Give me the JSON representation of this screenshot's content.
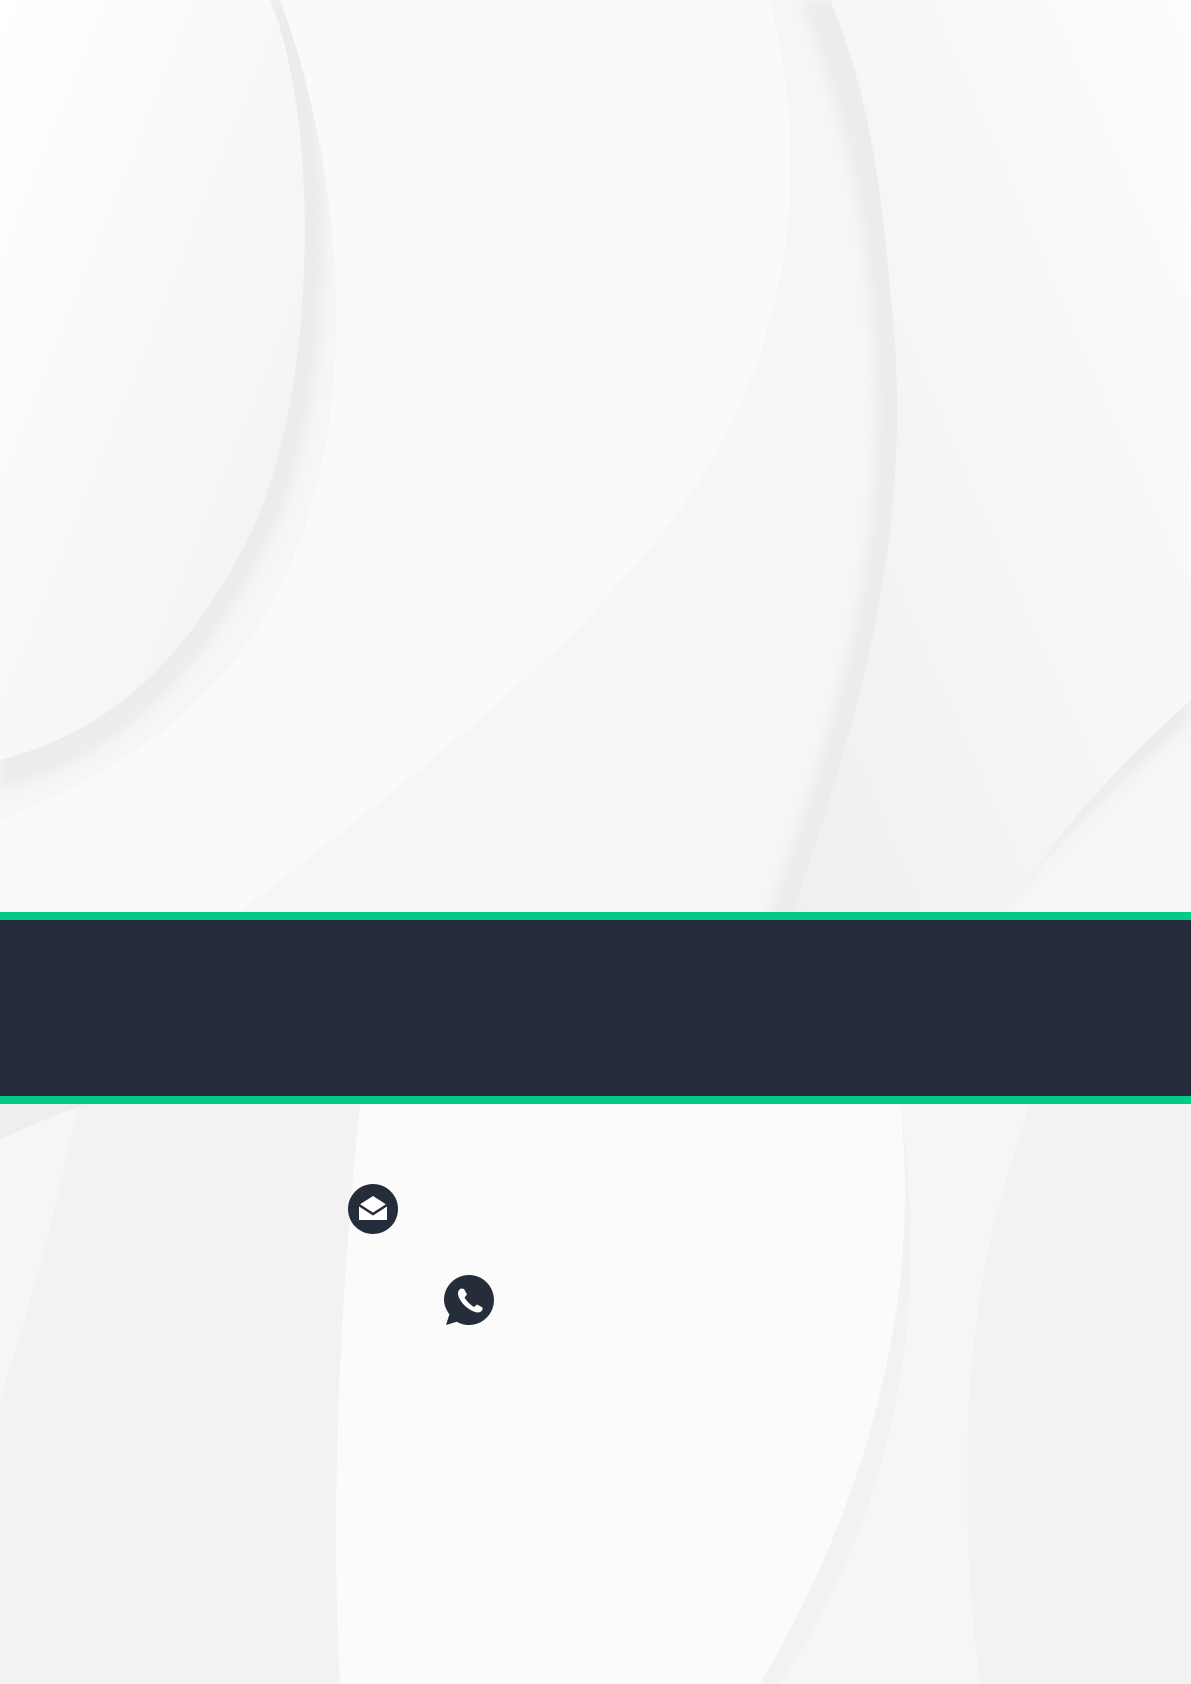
{
  "document": {
    "background_color": "#f8f8f8",
    "band": {
      "color": "#252c3a",
      "accent_color": "#00cc88",
      "title": "",
      "subtitle": ""
    },
    "contacts": [
      {
        "icon": "envelope-icon",
        "text": ""
      },
      {
        "icon": "whatsapp-phone-icon",
        "text": ""
      }
    ],
    "icon_color": "#252c3a"
  }
}
